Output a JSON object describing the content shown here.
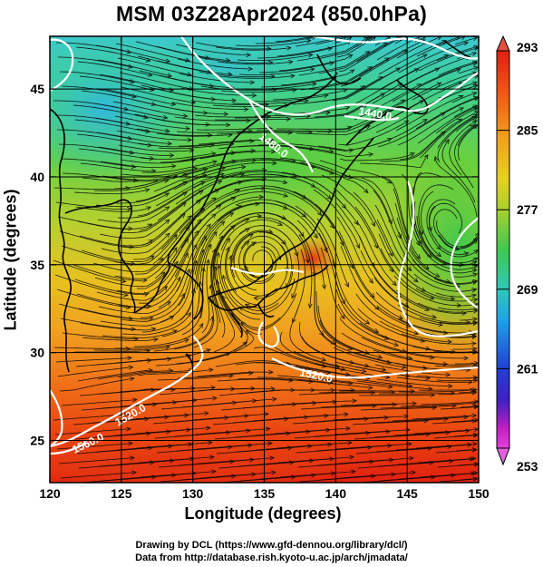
{
  "title": "MSM 03Z28Apr2024 (850.0hPa)",
  "map": {
    "xlabel": "Longitude (degrees)",
    "ylabel": "Latitude  (degrees)",
    "lon_range": [
      120,
      150
    ],
    "lat_range": [
      22.6,
      48
    ],
    "x_ticks": [
      "120",
      "125",
      "130",
      "135",
      "140",
      "145",
      "150"
    ],
    "y_ticks": [
      "25",
      "30",
      "35",
      "40",
      "45"
    ],
    "grid_lon": [
      125,
      130,
      135,
      140,
      145
    ],
    "grid_lat": [
      25,
      30,
      35,
      40,
      45
    ]
  },
  "colorbar": {
    "ticks": [
      "293",
      "285",
      "277",
      "269",
      "261",
      "253"
    ],
    "min": 253,
    "max": 293
  },
  "contours": {
    "labels": [
      "1440.0",
      "1480.0",
      "1520.0",
      "1520.0",
      "1560.0"
    ]
  },
  "colors": {
    "warm": "#e04010",
    "cool": "#40c8c0",
    "contour": "#ffffff",
    "stream": "#000000"
  },
  "credits": {
    "line1": "Drawing by DCL (https://www.gfd-dennou.org/library/dcl/)",
    "line2": "Data from http://database.rish.kyoto-u.ac.jp/arch/jmadata/"
  }
}
